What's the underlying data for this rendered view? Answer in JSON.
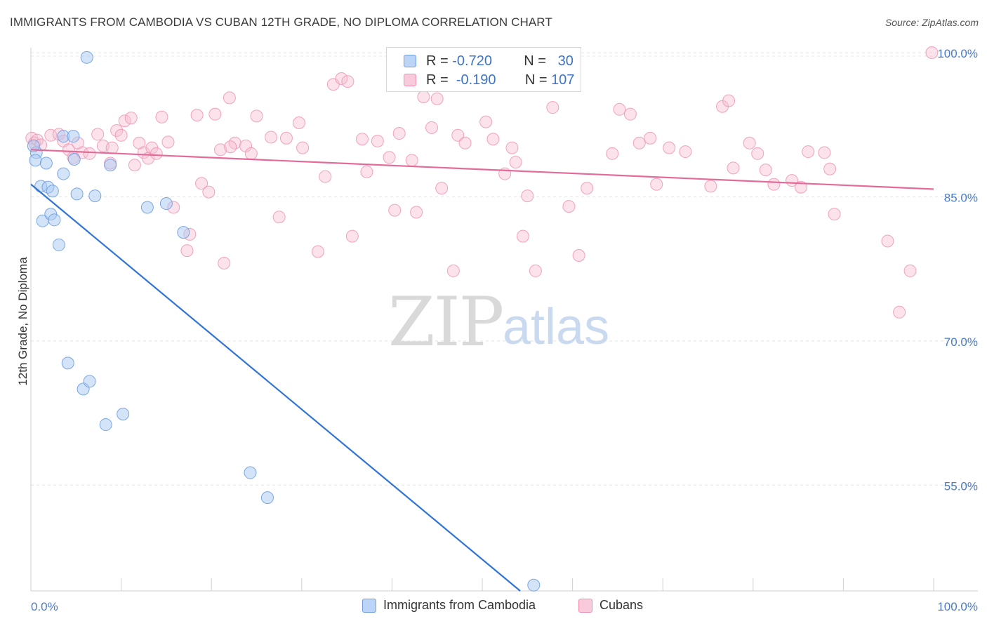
{
  "title": "IMMIGRANTS FROM CAMBODIA VS CUBAN 12TH GRADE, NO DIPLOMA CORRELATION CHART",
  "source": "Source: ZipAtlas.com",
  "watermark": {
    "zip": "ZIP",
    "atlas": "atlas"
  },
  "legend": {
    "r_label": "R =",
    "n_label": "N =",
    "series1": {
      "r": "-0.720",
      "n": "30"
    },
    "series2": {
      "r": "-0.190",
      "n": "107"
    }
  },
  "colors": {
    "cambodia_fill": "#a9c9f2",
    "cambodia_stroke": "#6f9fe0",
    "cambodia_line": "#2f74d6",
    "cubans_fill": "#f7bfd2",
    "cubans_stroke": "#ee8fb0",
    "cubans_line": "#e46b98",
    "tick_text": "#4a7cc9",
    "grid": "#e4e4e4"
  },
  "chart_data": {
    "type": "scatter",
    "title": "IMMIGRANTS FROM CAMBODIA VS CUBAN 12TH GRADE, NO DIPLOMA CORRELATION CHART",
    "xlabel": "",
    "ylabel": "12th Grade, No Diploma",
    "xlim": [
      0,
      100
    ],
    "ylim": [
      44,
      100
    ],
    "x_tick_labels": [
      "0.0%",
      "100.0%"
    ],
    "y_tick_values": [
      55,
      70,
      85,
      100
    ],
    "y_tick_labels": [
      "55.0%",
      "70.0%",
      "85.0%",
      "100.0%"
    ],
    "grid": true,
    "legend_position": "top-center",
    "series": [
      {
        "name": "Immigrants from Cambodia",
        "r": -0.72,
        "n": 30,
        "trend": {
          "x": [
            0,
            54.2
          ],
          "y": [
            86.3,
            44
          ]
        },
        "points": [
          [
            6.2,
            99.5
          ],
          [
            0.6,
            89.6
          ],
          [
            0.3,
            90.3
          ],
          [
            0.5,
            88.8
          ],
          [
            1.7,
            88.5
          ],
          [
            3.6,
            91.3
          ],
          [
            4.7,
            91.3
          ],
          [
            4.8,
            88.9
          ],
          [
            1.1,
            86.1
          ],
          [
            1.9,
            86.0
          ],
          [
            2.4,
            85.6
          ],
          [
            3.6,
            87.4
          ],
          [
            5.1,
            85.3
          ],
          [
            7.1,
            85.1
          ],
          [
            8.8,
            88.3
          ],
          [
            12.9,
            83.9
          ],
          [
            15.0,
            84.3
          ],
          [
            1.3,
            82.5
          ],
          [
            2.2,
            83.2
          ],
          [
            2.6,
            82.6
          ],
          [
            3.1,
            80.0
          ],
          [
            16.9,
            81.3
          ],
          [
            4.1,
            67.7
          ],
          [
            5.8,
            65.0
          ],
          [
            6.5,
            65.8
          ],
          [
            8.3,
            61.3
          ],
          [
            10.2,
            62.4
          ],
          [
            24.3,
            56.3
          ],
          [
            26.2,
            53.7
          ],
          [
            55.7,
            44.6
          ]
        ]
      },
      {
        "name": "Cubans",
        "r": -0.19,
        "n": 107,
        "trend": {
          "x": [
            0,
            100
          ],
          "y": [
            89.9,
            85.8
          ]
        },
        "points": [
          [
            99.8,
            100.0
          ],
          [
            0.1,
            91.1
          ],
          [
            0.4,
            90.6
          ],
          [
            0.7,
            90.9
          ],
          [
            1.1,
            90.4
          ],
          [
            2.2,
            91.4
          ],
          [
            3.1,
            91.5
          ],
          [
            3.6,
            90.8
          ],
          [
            4.2,
            89.9
          ],
          [
            4.7,
            89.1
          ],
          [
            5.2,
            90.6
          ],
          [
            5.7,
            89.6
          ],
          [
            6.5,
            89.5
          ],
          [
            7.4,
            91.5
          ],
          [
            8.0,
            90.3
          ],
          [
            8.8,
            88.5
          ],
          [
            9.0,
            90.1
          ],
          [
            9.5,
            91.9
          ],
          [
            10.0,
            91.4
          ],
          [
            10.4,
            92.9
          ],
          [
            11.1,
            93.2
          ],
          [
            11.5,
            88.3
          ],
          [
            12.0,
            90.6
          ],
          [
            12.5,
            89.6
          ],
          [
            13.0,
            89.0
          ],
          [
            13.4,
            90.1
          ],
          [
            13.9,
            89.5
          ],
          [
            14.5,
            93.3
          ],
          [
            15.2,
            90.7
          ],
          [
            15.8,
            83.9
          ],
          [
            17.6,
            81.1
          ],
          [
            17.3,
            79.4
          ],
          [
            18.4,
            93.5
          ],
          [
            18.9,
            86.4
          ],
          [
            19.7,
            85.5
          ],
          [
            20.4,
            93.6
          ],
          [
            21.0,
            89.9
          ],
          [
            22.0,
            95.3
          ],
          [
            22.6,
            90.6
          ],
          [
            21.4,
            78.1
          ],
          [
            23.8,
            90.3
          ],
          [
            24.4,
            89.5
          ],
          [
            25.0,
            93.4
          ],
          [
            22.1,
            90.2
          ],
          [
            26.6,
            91.2
          ],
          [
            27.5,
            82.9
          ],
          [
            28.3,
            91.1
          ],
          [
            29.7,
            92.7
          ],
          [
            30.1,
            90.1
          ],
          [
            31.8,
            79.3
          ],
          [
            32.6,
            87.1
          ],
          [
            33.5,
            96.7
          ],
          [
            34.4,
            97.3
          ],
          [
            35.1,
            97.0
          ],
          [
            35.6,
            80.9
          ],
          [
            36.7,
            91.0
          ],
          [
            37.2,
            87.6
          ],
          [
            38.4,
            90.8
          ],
          [
            39.7,
            89.1
          ],
          [
            40.3,
            83.6
          ],
          [
            40.8,
            91.6
          ],
          [
            42.2,
            88.8
          ],
          [
            42.7,
            83.4
          ],
          [
            43.5,
            95.4
          ],
          [
            44.4,
            92.2
          ],
          [
            45.0,
            95.2
          ],
          [
            45.5,
            85.9
          ],
          [
            46.8,
            77.3
          ],
          [
            47.3,
            91.4
          ],
          [
            48.1,
            90.6
          ],
          [
            50.4,
            92.8
          ],
          [
            51.2,
            91.0
          ],
          [
            52.5,
            87.4
          ],
          [
            53.3,
            90.1
          ],
          [
            53.7,
            88.6
          ],
          [
            54.5,
            80.9
          ],
          [
            55.0,
            85.1
          ],
          [
            55.9,
            77.3
          ],
          [
            57.8,
            94.3
          ],
          [
            59.6,
            84.0
          ],
          [
            60.7,
            78.9
          ],
          [
            61.6,
            85.9
          ],
          [
            64.4,
            89.5
          ],
          [
            65.2,
            94.1
          ],
          [
            66.4,
            93.6
          ],
          [
            67.4,
            90.6
          ],
          [
            68.6,
            91.1
          ],
          [
            69.3,
            86.3
          ],
          [
            70.7,
            90.1
          ],
          [
            72.5,
            89.7
          ],
          [
            75.3,
            86.1
          ],
          [
            76.6,
            94.4
          ],
          [
            77.3,
            95.0
          ],
          [
            77.8,
            88.0
          ],
          [
            79.6,
            90.6
          ],
          [
            80.5,
            89.5
          ],
          [
            81.4,
            87.8
          ],
          [
            82.3,
            86.3
          ],
          [
            84.3,
            86.7
          ],
          [
            85.3,
            86.0
          ],
          [
            86.1,
            89.7
          ],
          [
            87.9,
            89.6
          ],
          [
            88.5,
            87.9
          ],
          [
            89.0,
            83.2
          ],
          [
            94.9,
            80.4
          ],
          [
            96.2,
            73.0
          ],
          [
            97.4,
            77.3
          ]
        ]
      }
    ]
  },
  "bottom_legend": {
    "item1": "Immigrants from Cambodia",
    "item2": "Cubans"
  }
}
